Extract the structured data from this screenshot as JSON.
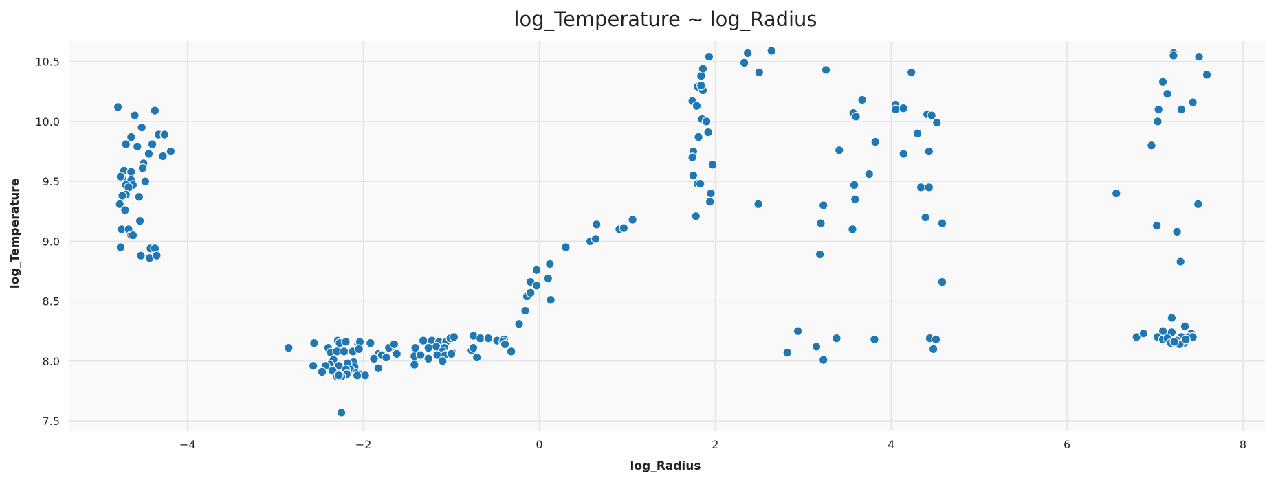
{
  "chart_data": {
    "type": "scatter",
    "title": "log_Temperature ~ log_Radius",
    "xlabel": "log_Radius",
    "ylabel": "log_Temperature",
    "xlim": [
      -5.35,
      8.25
    ],
    "ylim": [
      7.42,
      10.67
    ],
    "xticks": [
      -4,
      -2,
      0,
      2,
      4,
      6,
      8
    ],
    "xtick_labels": [
      "−4",
      "−2",
      "0",
      "2",
      "4",
      "6",
      "8"
    ],
    "yticks": [
      7.5,
      8.0,
      8.5,
      9.0,
      9.5,
      10.0,
      10.5
    ],
    "ytick_labels": [
      "7.5",
      "8.0",
      "8.5",
      "9.0",
      "9.5",
      "10.0",
      "10.5"
    ],
    "grid": true,
    "colors": {
      "point": "#1f77b4",
      "plot_background": "#f9f9f9",
      "grid": "#e3e3e3"
    },
    "points": [
      [
        -4.79,
        10.12
      ],
      [
        -4.6,
        10.05
      ],
      [
        -4.37,
        10.09
      ],
      [
        -4.52,
        9.95
      ],
      [
        -4.64,
        9.87
      ],
      [
        -4.7,
        9.81
      ],
      [
        -4.57,
        9.79
      ],
      [
        -4.4,
        9.81
      ],
      [
        -4.33,
        9.89
      ],
      [
        -4.26,
        9.89
      ],
      [
        -4.19,
        9.75
      ],
      [
        -4.44,
        9.73
      ],
      [
        -4.28,
        9.71
      ],
      [
        -4.5,
        9.65
      ],
      [
        -4.51,
        9.61
      ],
      [
        -4.72,
        9.59
      ],
      [
        -4.64,
        9.58
      ],
      [
        -4.74,
        9.53
      ],
      [
        -4.76,
        9.54
      ],
      [
        -4.64,
        9.51
      ],
      [
        -4.48,
        9.5
      ],
      [
        -4.7,
        9.47
      ],
      [
        -4.62,
        9.47
      ],
      [
        -4.67,
        9.45
      ],
      [
        -4.7,
        9.39
      ],
      [
        -4.74,
        9.38
      ],
      [
        -4.55,
        9.37
      ],
      [
        -4.77,
        9.31
      ],
      [
        -4.71,
        9.26
      ],
      [
        -4.54,
        9.17
      ],
      [
        -4.75,
        9.1
      ],
      [
        -4.67,
        9.1
      ],
      [
        -4.64,
        9.05
      ],
      [
        -4.62,
        9.05
      ],
      [
        -4.76,
        8.95
      ],
      [
        -4.42,
        8.94
      ],
      [
        -4.37,
        8.94
      ],
      [
        -4.53,
        8.88
      ],
      [
        -4.43,
        8.86
      ],
      [
        -4.35,
        8.88
      ],
      [
        -2.85,
        8.11
      ],
      [
        -2.56,
        8.15
      ],
      [
        -2.4,
        8.11
      ],
      [
        -2.29,
        8.17
      ],
      [
        -2.27,
        8.15
      ],
      [
        -2.2,
        8.16
      ],
      [
        -2.06,
        8.14
      ],
      [
        -2.04,
        8.16
      ],
      [
        -1.92,
        8.15
      ],
      [
        -1.71,
        8.11
      ],
      [
        -1.65,
        8.14
      ],
      [
        -1.63,
        8.07
      ],
      [
        -1.62,
        8.06
      ],
      [
        -2.37,
        8.07
      ],
      [
        -2.3,
        8.08
      ],
      [
        -2.22,
        8.08
      ],
      [
        -2.12,
        8.08
      ],
      [
        -2.05,
        8.1
      ],
      [
        -1.83,
        8.06
      ],
      [
        -1.79,
        8.05
      ],
      [
        -1.74,
        8.03
      ],
      [
        -1.88,
        8.02
      ],
      [
        -2.11,
        7.99
      ],
      [
        -2.18,
        7.98
      ],
      [
        -2.34,
        8.01
      ],
      [
        -2.38,
        7.97
      ],
      [
        -2.43,
        7.96
      ],
      [
        -2.57,
        7.96
      ],
      [
        -2.28,
        7.96
      ],
      [
        -2.1,
        7.95
      ],
      [
        -2.15,
        7.93
      ],
      [
        -2.2,
        7.93
      ],
      [
        -2.47,
        7.91
      ],
      [
        -2.35,
        7.92
      ],
      [
        -2.08,
        7.9
      ],
      [
        -2.19,
        7.89
      ],
      [
        -2.04,
        7.89
      ],
      [
        -1.98,
        7.88
      ],
      [
        -2.07,
        7.88
      ],
      [
        -1.83,
        7.94
      ],
      [
        -2.25,
        7.87
      ],
      [
        -2.3,
        7.87
      ],
      [
        -2.28,
        7.88
      ],
      [
        -2.25,
        7.57
      ],
      [
        -1.41,
        8.11
      ],
      [
        -1.32,
        8.17
      ],
      [
        -1.22,
        8.17
      ],
      [
        -1.14,
        8.16
      ],
      [
        -1.06,
        8.16
      ],
      [
        -1.01,
        8.19
      ],
      [
        -0.97,
        8.2
      ],
      [
        -0.75,
        8.21
      ],
      [
        -0.67,
        8.19
      ],
      [
        -0.58,
        8.19
      ],
      [
        -0.48,
        8.17
      ],
      [
        -0.4,
        8.18
      ],
      [
        -0.41,
        8.16
      ],
      [
        -1.26,
        8.11
      ],
      [
        -1.17,
        8.12
      ],
      [
        -1.08,
        8.11
      ],
      [
        -0.99,
        8.07
      ],
      [
        -1.1,
        8.08
      ],
      [
        -0.77,
        8.09
      ],
      [
        -0.75,
        8.11
      ],
      [
        -0.39,
        8.14
      ],
      [
        -0.32,
        8.08
      ],
      [
        -1.42,
        8.04
      ],
      [
        -1.35,
        8.05
      ],
      [
        -1.16,
        8.05
      ],
      [
        -1.07,
        8.05
      ],
      [
        -1.0,
        8.06
      ],
      [
        -1.26,
        8.02
      ],
      [
        -1.1,
        8.0
      ],
      [
        -0.71,
        8.03
      ],
      [
        -1.42,
        7.97
      ],
      [
        -0.23,
        8.31
      ],
      [
        -0.16,
        8.42
      ],
      [
        -0.14,
        8.54
      ],
      [
        -0.1,
        8.57
      ],
      [
        -0.1,
        8.66
      ],
      [
        -0.03,
        8.63
      ],
      [
        -0.03,
        8.76
      ],
      [
        0.1,
        8.69
      ],
      [
        0.12,
        8.81
      ],
      [
        0.13,
        8.51
      ],
      [
        0.3,
        8.95
      ],
      [
        0.58,
        9.0
      ],
      [
        0.64,
        9.02
      ],
      [
        0.65,
        9.14
      ],
      [
        0.91,
        9.1
      ],
      [
        0.96,
        9.11
      ],
      [
        1.06,
        9.18
      ],
      [
        1.74,
        10.17
      ],
      [
        1.79,
        10.13
      ],
      [
        1.8,
        10.29
      ],
      [
        1.84,
        10.38
      ],
      [
        1.86,
        10.44
      ],
      [
        1.86,
        10.26
      ],
      [
        1.84,
        10.3
      ],
      [
        1.93,
        10.54
      ],
      [
        1.85,
        10.02
      ],
      [
        1.9,
        10.0
      ],
      [
        1.92,
        9.91
      ],
      [
        1.81,
        9.87
      ],
      [
        1.75,
        9.75
      ],
      [
        1.74,
        9.7
      ],
      [
        1.97,
        9.64
      ],
      [
        1.75,
        9.55
      ],
      [
        1.8,
        9.48
      ],
      [
        1.83,
        9.48
      ],
      [
        1.95,
        9.4
      ],
      [
        1.94,
        9.33
      ],
      [
        1.78,
        9.21
      ],
      [
        2.33,
        10.49
      ],
      [
        2.37,
        10.57
      ],
      [
        2.5,
        10.41
      ],
      [
        2.64,
        10.59
      ],
      [
        2.49,
        9.31
      ],
      [
        3.26,
        10.43
      ],
      [
        3.67,
        10.18
      ],
      [
        3.57,
        10.07
      ],
      [
        3.6,
        10.04
      ],
      [
        3.41,
        9.76
      ],
      [
        3.82,
        9.83
      ],
      [
        3.75,
        9.56
      ],
      [
        3.58,
        9.47
      ],
      [
        3.59,
        9.35
      ],
      [
        3.23,
        9.3
      ],
      [
        3.2,
        9.15
      ],
      [
        3.56,
        9.1
      ],
      [
        3.19,
        8.89
      ],
      [
        2.94,
        8.25
      ],
      [
        2.82,
        8.07
      ],
      [
        3.15,
        8.12
      ],
      [
        3.23,
        8.01
      ],
      [
        3.38,
        8.19
      ],
      [
        3.81,
        8.18
      ],
      [
        4.05,
        10.14
      ],
      [
        4.05,
        10.1
      ],
      [
        4.14,
        10.11
      ],
      [
        4.23,
        10.41
      ],
      [
        4.41,
        10.06
      ],
      [
        4.46,
        10.05
      ],
      [
        4.52,
        9.99
      ],
      [
        4.3,
        9.9
      ],
      [
        4.14,
        9.73
      ],
      [
        4.43,
        9.75
      ],
      [
        4.34,
        9.45
      ],
      [
        4.43,
        9.45
      ],
      [
        4.39,
        9.2
      ],
      [
        4.58,
        9.15
      ],
      [
        4.58,
        8.66
      ],
      [
        4.44,
        8.19
      ],
      [
        4.51,
        8.18
      ],
      [
        4.48,
        8.1
      ],
      [
        7.21,
        10.57
      ],
      [
        7.21,
        10.55
      ],
      [
        7.5,
        10.54
      ],
      [
        7.59,
        10.39
      ],
      [
        7.09,
        10.33
      ],
      [
        7.14,
        10.23
      ],
      [
        7.43,
        10.16
      ],
      [
        7.04,
        10.1
      ],
      [
        7.3,
        10.1
      ],
      [
        7.03,
        10.0
      ],
      [
        6.96,
        9.8
      ],
      [
        6.56,
        9.4
      ],
      [
        7.49,
        9.31
      ],
      [
        7.02,
        9.13
      ],
      [
        7.25,
        9.08
      ],
      [
        7.29,
        8.83
      ],
      [
        7.19,
        8.36
      ],
      [
        7.34,
        8.29
      ],
      [
        7.09,
        8.25
      ],
      [
        7.19,
        8.24
      ],
      [
        7.41,
        8.23
      ],
      [
        6.79,
        8.2
      ],
      [
        6.87,
        8.23
      ],
      [
        7.03,
        8.2
      ],
      [
        7.09,
        8.18
      ],
      [
        7.14,
        8.19
      ],
      [
        7.3,
        8.2
      ],
      [
        7.38,
        8.2
      ],
      [
        7.43,
        8.2
      ],
      [
        7.2,
        8.16
      ],
      [
        7.25,
        8.17
      ],
      [
        7.33,
        8.15
      ],
      [
        7.28,
        8.14
      ],
      [
        7.18,
        8.15
      ],
      [
        7.22,
        8.16
      ],
      [
        7.35,
        8.18
      ]
    ]
  }
}
